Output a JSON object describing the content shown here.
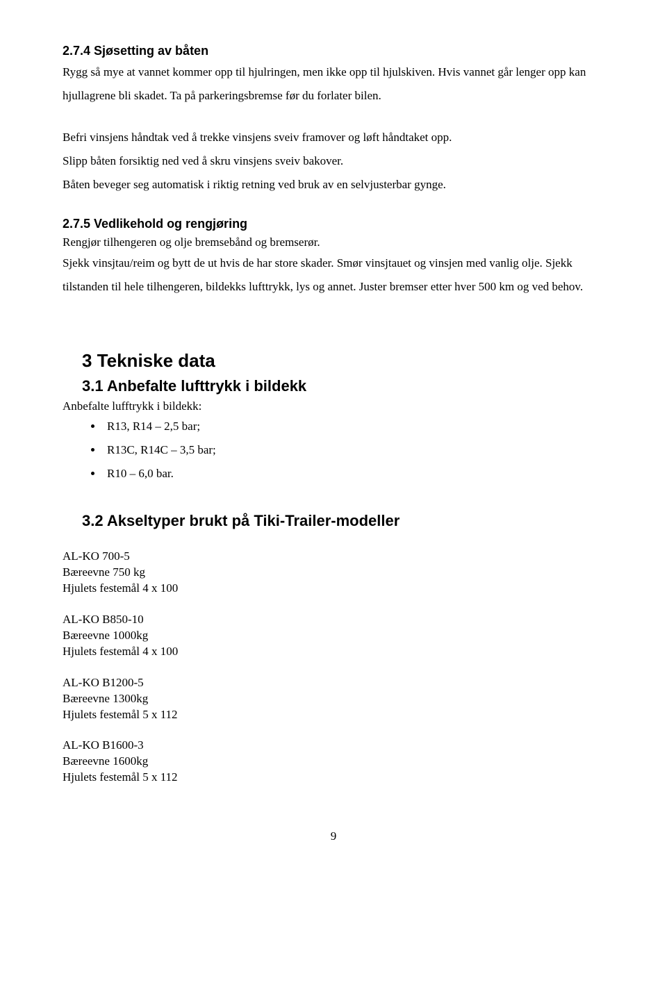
{
  "sections": {
    "s274": {
      "heading": "2.7.4  Sjøsetting av båten",
      "p1": "Rygg så mye at vannet kommer opp til hjulringen, men ikke opp til hjulskiven. Hvis vannet går lenger opp kan hjullagrene bli skadet. Ta på parkeringsbremse før du forlater bilen.",
      "p2": "Befri vinsjens håndtak ved å trekke vinsjens sveiv framover og løft håndtaket opp.",
      "p3": "Slipp båten forsiktig ned ved å skru vinsjens sveiv bakover.",
      "p4": "Båten beveger seg automatisk i riktig retning ved bruk av en selvjusterbar gynge."
    },
    "s275": {
      "heading": "2.7.5  Vedlikehold og rengjøring",
      "p1": "Rengjør tilhengeren og olje bremsebånd og bremserør.",
      "p2": "Sjekk vinsjtau/reim og bytt de ut hvis de har store skader. Smør vinsjtauet og vinsjen med vanlig olje. Sjekk tilstanden til hele tilhengeren, bildekks lufttrykk, lys og annet. Juster bremser etter hver 500 km og ved behov."
    },
    "s3": {
      "heading": "3  Tekniske data"
    },
    "s31": {
      "heading": "3.1 Anbefalte lufttrykk i bildekk",
      "intro": "Anbefalte lufftrykk i bildekk:",
      "items": [
        "R13, R14 – 2,5 bar;",
        "R13C, R14C – 3,5 bar;",
        "R10 – 6,0 bar."
      ]
    },
    "s32": {
      "heading": "3.2 Akseltyper brukt på Tiki-Trailer-modeller",
      "axles": [
        {
          "model": "AL-KO 700-5",
          "cap": "Bæreevne 750 kg",
          "bolt": "Hjulets festemål 4 x 100"
        },
        {
          "model": "AL-KO B850-10",
          "cap": "Bæreevne 1000kg",
          "bolt": "Hjulets festemål 4 x 100"
        },
        {
          "model": "AL-KO B1200-5",
          "cap": "Bæreevne 1300kg",
          "bolt": "Hjulets festemål 5 x 112"
        },
        {
          "model": "AL-KO B1600-3",
          "cap": "Bæreevne 1600kg",
          "bolt": "Hjulets festemål 5 x 112"
        }
      ]
    }
  },
  "page_number": "9"
}
